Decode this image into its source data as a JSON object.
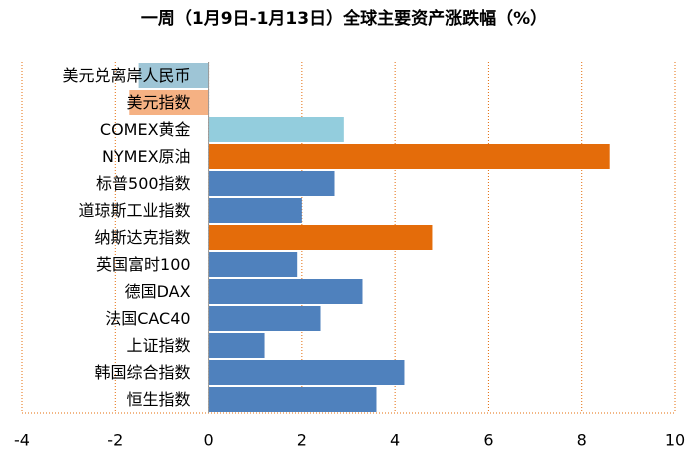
{
  "chart_data": {
    "type": "barh",
    "title": "一周（1月9日-1月13日）全球主要资产涨跌幅（%）",
    "categories": [
      "美元兑离岸人民币",
      "美元指数",
      "COMEX黄金",
      "NYMEX原油",
      "标普500指数",
      "道琼斯工业指数",
      "纳斯达克指数",
      "英国富时100",
      "德国DAX",
      "法国CAC40",
      "上证指数",
      "韩国综合指数",
      "恒生指数"
    ],
    "values": [
      -1.5,
      -1.7,
      2.9,
      8.6,
      2.7,
      2.0,
      4.8,
      1.9,
      3.3,
      2.4,
      1.2,
      4.2,
      3.6
    ],
    "colors": [
      "#9ec5d6",
      "#f5b183",
      "#93cddd",
      "#e46c0a",
      "#4f81bd",
      "#4f81bd",
      "#e46c0a",
      "#4f81bd",
      "#4f81bd",
      "#4f81bd",
      "#4f81bd",
      "#4f81bd",
      "#4f81bd"
    ],
    "xlim": [
      -4,
      10
    ],
    "xticks": [
      -4,
      -2,
      0,
      2,
      4,
      6,
      8,
      10
    ],
    "grid": true
  }
}
